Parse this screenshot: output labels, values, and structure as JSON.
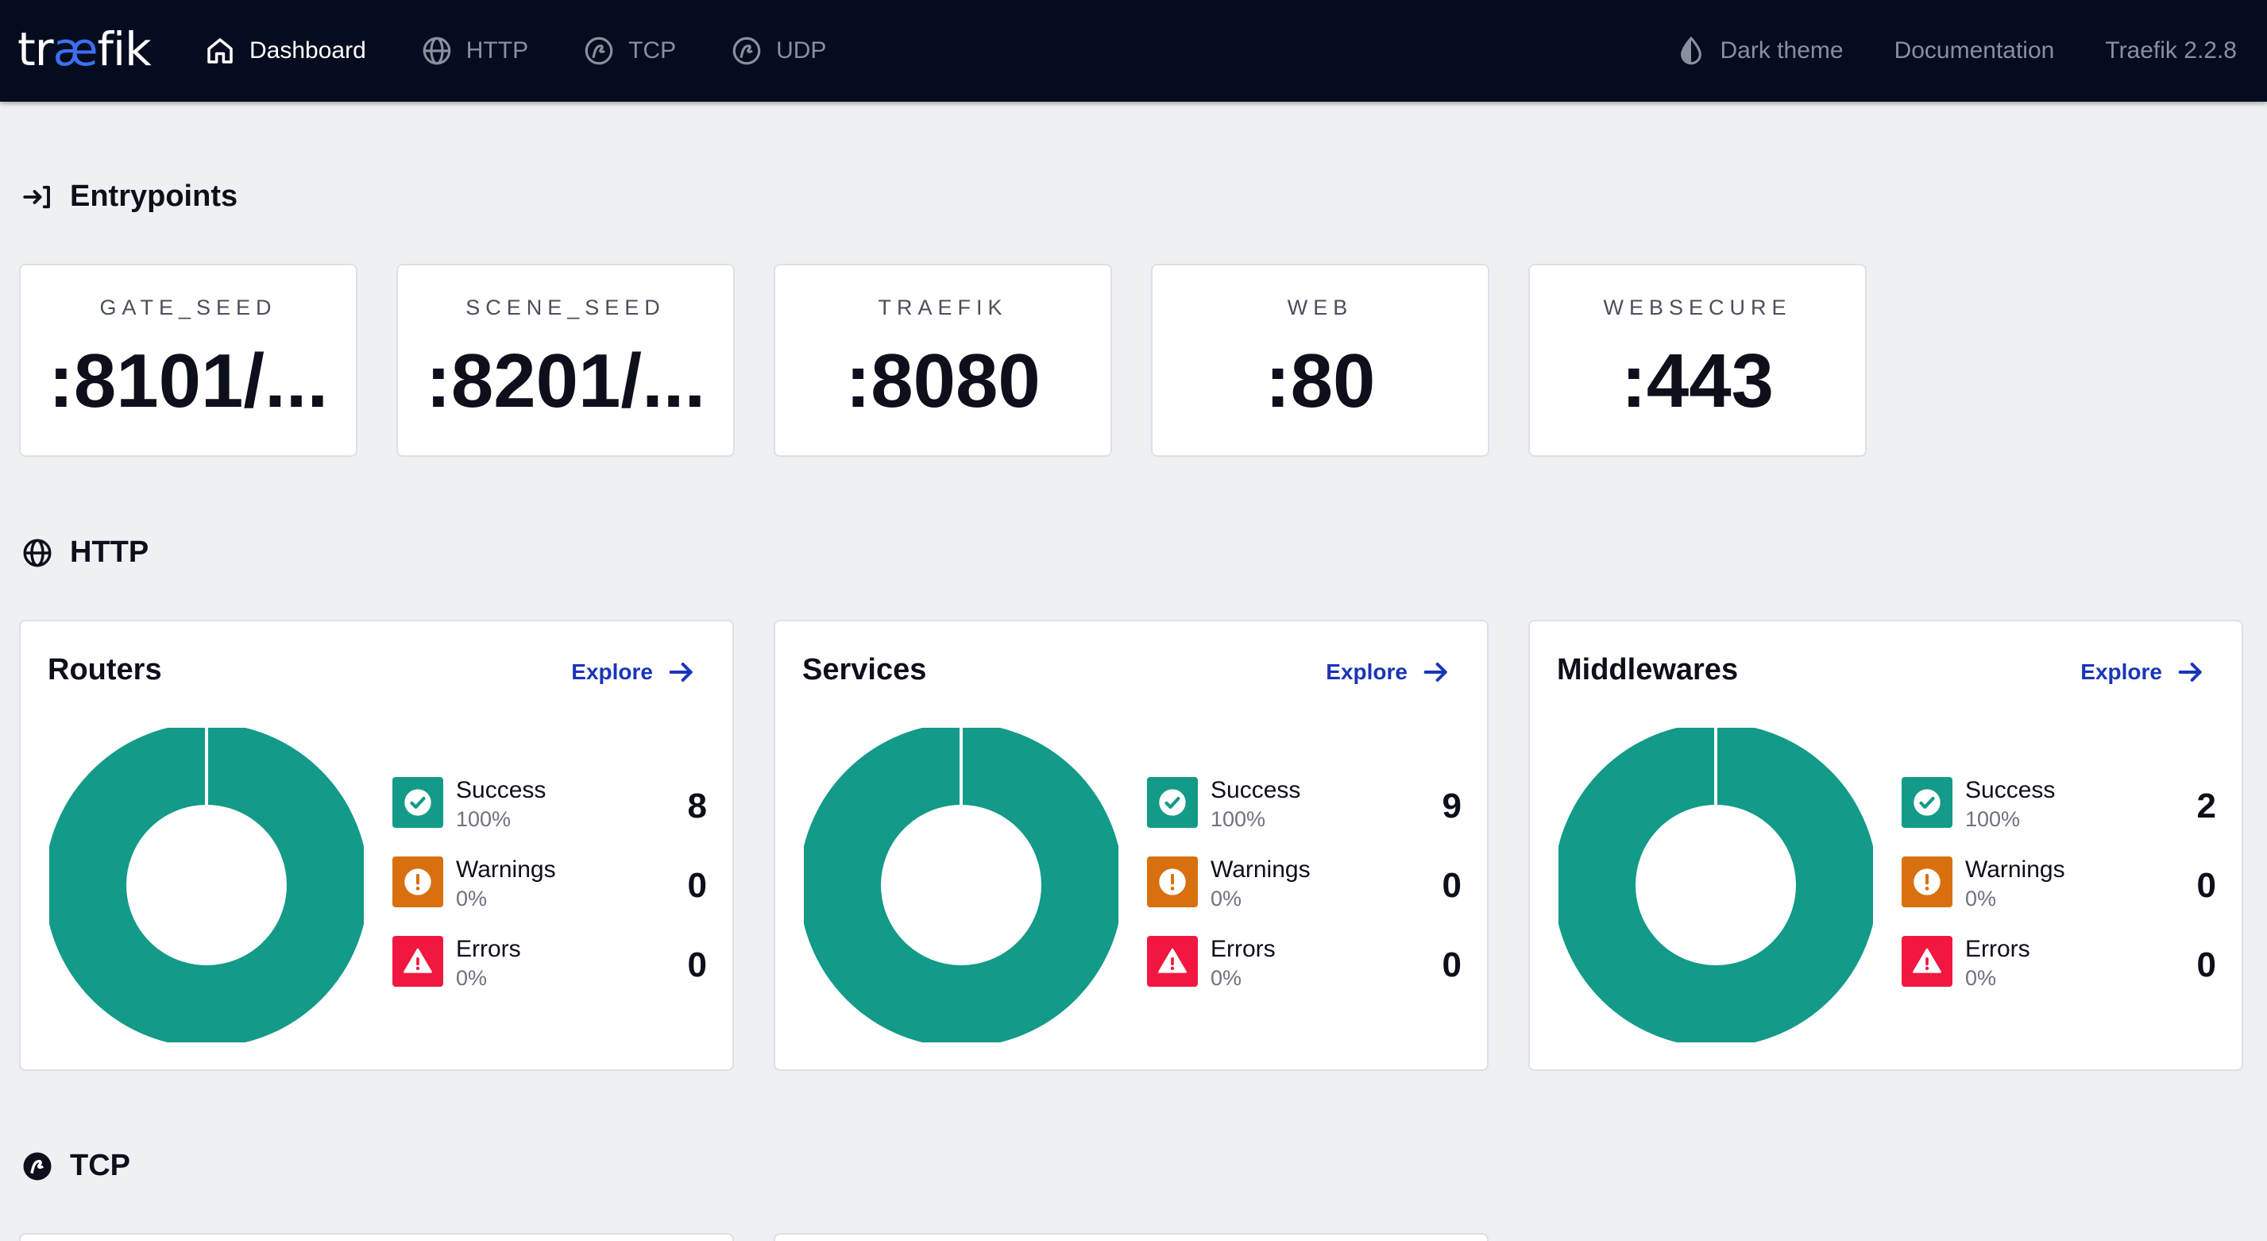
{
  "nav": {
    "logo_pre": "tr",
    "logo_ae": "æ",
    "logo_post": "fik",
    "items": [
      {
        "label": "Dashboard",
        "icon": "home-icon",
        "active": true
      },
      {
        "label": "HTTP",
        "icon": "globe-icon",
        "active": false
      },
      {
        "label": "TCP",
        "icon": "tcp-icon",
        "active": false
      },
      {
        "label": "UDP",
        "icon": "udp-icon",
        "active": false
      }
    ],
    "theme_label": "Dark theme",
    "docs_label": "Documentation",
    "version_label": "Traefik 2.2.8"
  },
  "entrypoints": {
    "title": "Entrypoints",
    "items": [
      {
        "name": "GATE_SEED",
        "port": ":8101/..."
      },
      {
        "name": "SCENE_SEED",
        "port": ":8201/..."
      },
      {
        "name": "TRAEFIK",
        "port": ":8080"
      },
      {
        "name": "WEB",
        "port": ":80"
      },
      {
        "name": "WEBSECURE",
        "port": ":443"
      }
    ]
  },
  "http": {
    "title": "HTTP",
    "explore_label": "Explore",
    "cards": [
      {
        "title": "Routers",
        "success": {
          "label": "Success",
          "pct": "100%",
          "count": "8"
        },
        "warnings": {
          "label": "Warnings",
          "pct": "0%",
          "count": "0"
        },
        "errors": {
          "label": "Errors",
          "pct": "0%",
          "count": "0"
        }
      },
      {
        "title": "Services",
        "success": {
          "label": "Success",
          "pct": "100%",
          "count": "9"
        },
        "warnings": {
          "label": "Warnings",
          "pct": "0%",
          "count": "0"
        },
        "errors": {
          "label": "Errors",
          "pct": "0%",
          "count": "0"
        }
      },
      {
        "title": "Middlewares",
        "success": {
          "label": "Success",
          "pct": "100%",
          "count": "2"
        },
        "warnings": {
          "label": "Warnings",
          "pct": "0%",
          "count": "0"
        },
        "errors": {
          "label": "Errors",
          "pct": "0%",
          "count": "0"
        }
      }
    ]
  },
  "tcp": {
    "title": "TCP"
  },
  "colors": {
    "success": "#139a88",
    "warning": "#d9700f",
    "error": "#f21740",
    "link": "#1a35b8",
    "nav_bg": "#060c1f"
  }
}
